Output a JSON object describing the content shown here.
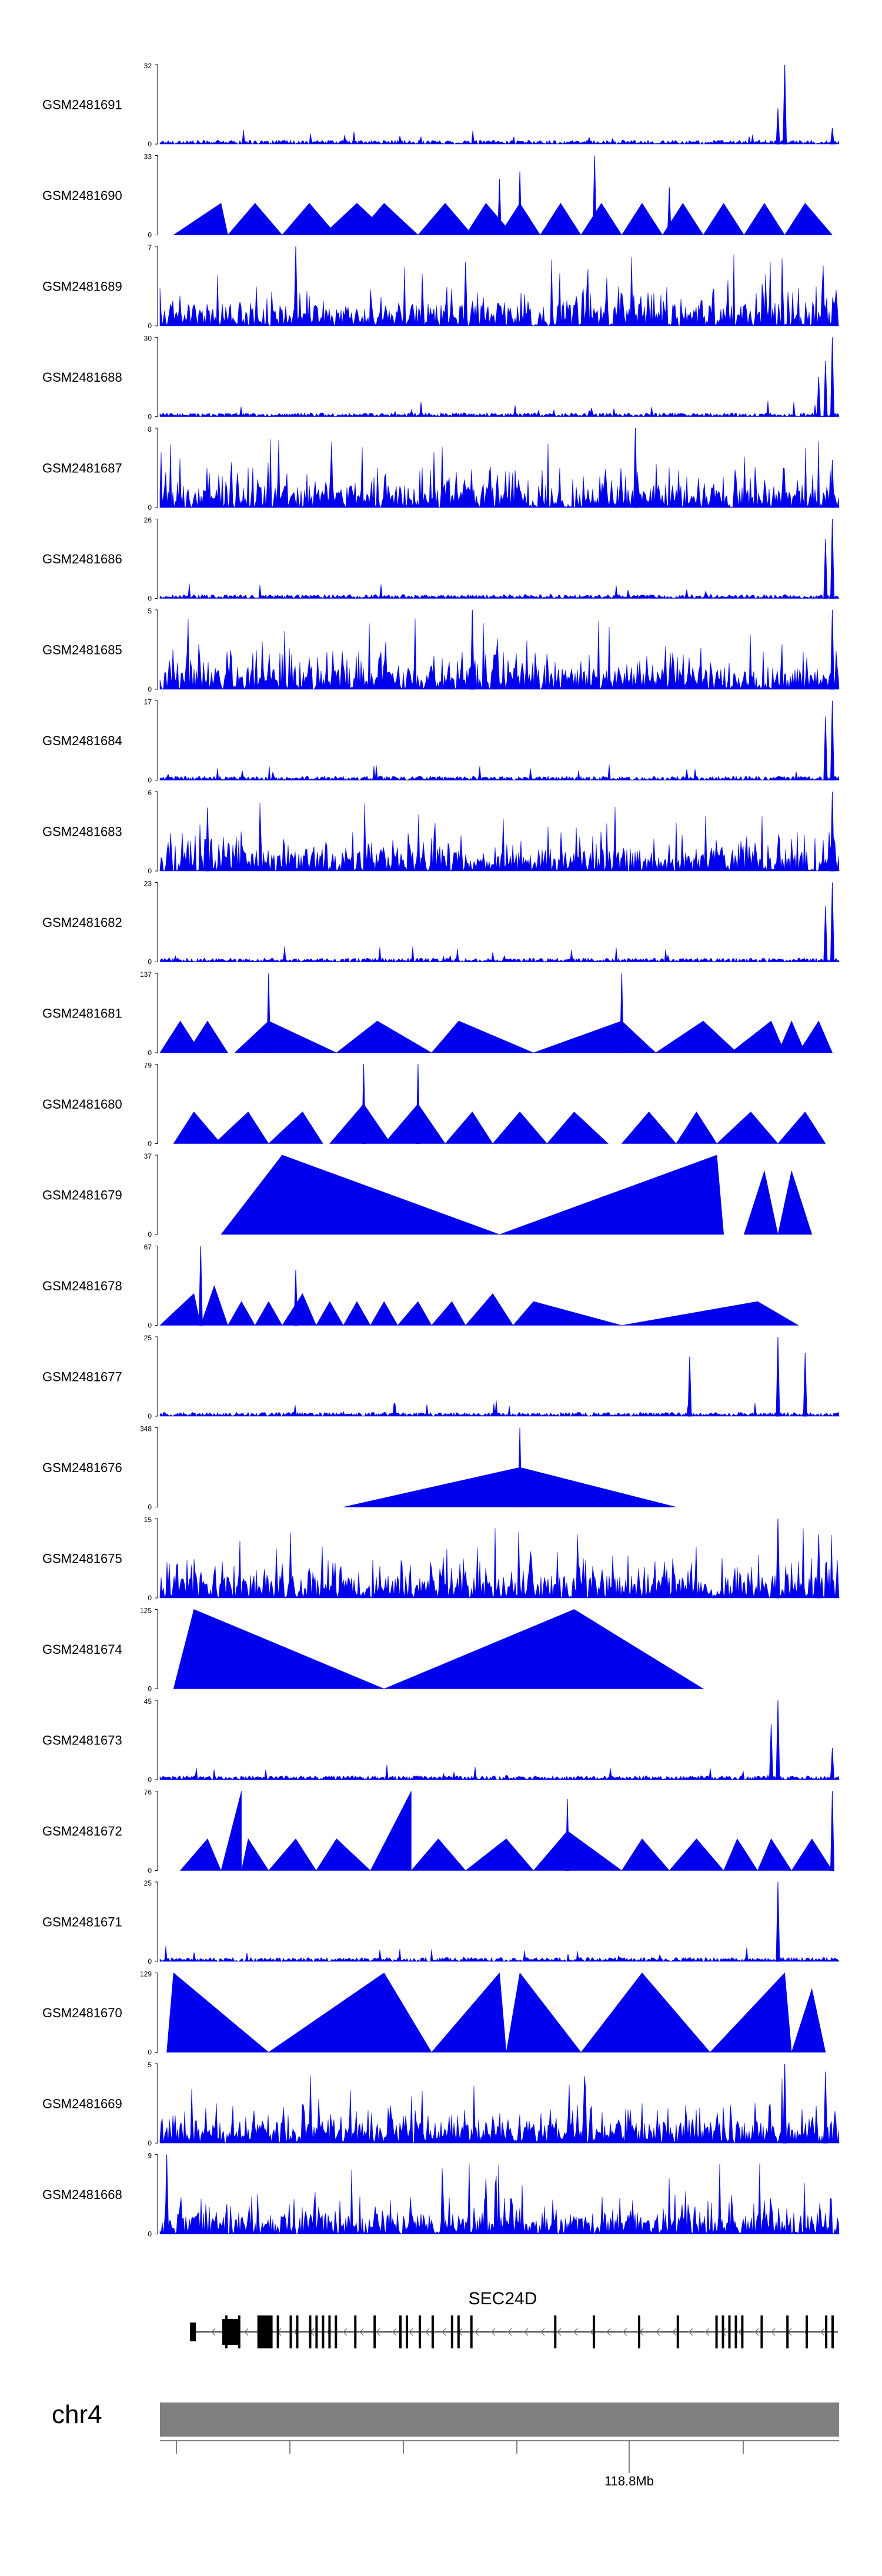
{
  "chart_data": {
    "type": "area",
    "genome": "chr4",
    "tick_label": "118.8Mb",
    "gene": {
      "name": "SEC24D",
      "strand": "minus"
    },
    "tracks": [
      {
        "name": "GSM2481691",
        "ymax": "32",
        "ymin": "0",
        "pattern": "noisy",
        "peaks": [
          [
            0.92,
            1.0
          ],
          [
            0.91,
            0.45
          ],
          [
            0.99,
            0.2
          ]
        ]
      },
      {
        "name": "GSM2481690",
        "ymax": "33",
        "ymin": "0",
        "pattern": "triangles",
        "peaks": [
          [
            0.64,
            1.0
          ],
          [
            0.5,
            0.7
          ],
          [
            0.53,
            0.8
          ],
          [
            0.75,
            0.6
          ]
        ]
      },
      {
        "name": "GSM2481689",
        "ymax": "7",
        "ymin": "0",
        "pattern": "dense",
        "peaks": [
          [
            0.2,
            1.0
          ],
          [
            0.45,
            0.8
          ]
        ]
      },
      {
        "name": "GSM2481688",
        "ymax": "30",
        "ymin": "0",
        "pattern": "noisy",
        "peaks": [
          [
            0.99,
            1.0
          ],
          [
            0.98,
            0.7
          ],
          [
            0.97,
            0.5
          ]
        ]
      },
      {
        "name": "GSM2481687",
        "ymax": "8",
        "ymin": "0",
        "pattern": "dense",
        "peaks": [
          [
            0.7,
            1.0
          ],
          [
            0.99,
            0.6
          ]
        ]
      },
      {
        "name": "GSM2481686",
        "ymax": "26",
        "ymin": "0",
        "pattern": "noisy",
        "peaks": [
          [
            0.99,
            1.0
          ],
          [
            0.98,
            0.75
          ]
        ]
      },
      {
        "name": "GSM2481685",
        "ymax": "5",
        "ymin": "0",
        "pattern": "dense",
        "peaks": [
          [
            0.46,
            1.0
          ],
          [
            0.99,
            1.0
          ]
        ]
      },
      {
        "name": "GSM2481684",
        "ymax": "17",
        "ymin": "0",
        "pattern": "noisy",
        "peaks": [
          [
            0.99,
            1.0
          ],
          [
            0.98,
            0.8
          ]
        ]
      },
      {
        "name": "GSM2481683",
        "ymax": "6",
        "ymin": "0",
        "pattern": "dense",
        "peaks": [
          [
            0.99,
            1.0
          ],
          [
            0.07,
            0.8
          ]
        ]
      },
      {
        "name": "GSM2481682",
        "ymax": "23",
        "ymin": "0",
        "pattern": "noisy",
        "peaks": [
          [
            0.99,
            1.0
          ],
          [
            0.98,
            0.7
          ]
        ]
      },
      {
        "name": "GSM2481681",
        "ymax": "137",
        "ymin": "0",
        "pattern": "triangles",
        "peaks": [
          [
            0.16,
            1.0
          ],
          [
            0.68,
            1.0
          ]
        ]
      },
      {
        "name": "GSM2481680",
        "ymax": "79",
        "ymin": "0",
        "pattern": "triangles",
        "peaks": [
          [
            0.3,
            1.0
          ],
          [
            0.38,
            1.0
          ]
        ]
      },
      {
        "name": "GSM2481679",
        "ymax": "37",
        "ymin": "0",
        "pattern": "triangles",
        "peaks": []
      },
      {
        "name": "GSM2481678",
        "ymax": "67",
        "ymin": "0",
        "pattern": "triangles",
        "peaks": [
          [
            0.06,
            1.0
          ],
          [
            0.2,
            0.7
          ]
        ]
      },
      {
        "name": "GSM2481677",
        "ymax": "25",
        "ymin": "0",
        "pattern": "noisy",
        "peaks": [
          [
            0.91,
            1.0
          ],
          [
            0.78,
            0.75
          ],
          [
            0.95,
            0.8
          ]
        ]
      },
      {
        "name": "GSM2481676",
        "ymax": "348",
        "ymin": "0",
        "pattern": "triangles",
        "peaks": [
          [
            0.53,
            1.0
          ]
        ]
      },
      {
        "name": "GSM2481675",
        "ymax": "15",
        "ymin": "0",
        "pattern": "dense",
        "peaks": [
          [
            0.91,
            1.0
          ],
          [
            0.97,
            0.8
          ]
        ]
      },
      {
        "name": "GSM2481674",
        "ymax": "125",
        "ymin": "0",
        "pattern": "triangles",
        "peaks": []
      },
      {
        "name": "GSM2481673",
        "ymax": "45",
        "ymin": "0",
        "pattern": "noisy",
        "peaks": [
          [
            0.91,
            1.0
          ],
          [
            0.9,
            0.7
          ],
          [
            0.99,
            0.4
          ]
        ]
      },
      {
        "name": "GSM2481672",
        "ymax": "76",
        "ymin": "0",
        "pattern": "triangles",
        "peaks": [
          [
            0.99,
            1.0
          ],
          [
            0.6,
            0.9
          ]
        ]
      },
      {
        "name": "GSM2481671",
        "ymax": "25",
        "ymin": "0",
        "pattern": "noisy",
        "peaks": [
          [
            0.91,
            1.0
          ]
        ]
      },
      {
        "name": "GSM2481670",
        "ymax": "129",
        "ymin": "0",
        "pattern": "triangles",
        "peaks": []
      },
      {
        "name": "GSM2481669",
        "ymax": "5",
        "ymin": "0",
        "pattern": "dense",
        "peaks": [
          [
            0.92,
            1.0
          ],
          [
            0.98,
            0.9
          ]
        ]
      },
      {
        "name": "GSM2481668",
        "ymax": "9",
        "ymin": "0",
        "pattern": "dense",
        "peaks": [
          [
            0.01,
            1.0
          ],
          [
            0.48,
            0.7
          ]
        ]
      }
    ],
    "triangle_sets": {
      "GSM2481690": [
        [
          2,
          10,
          9,
          0.4
        ],
        [
          10,
          18,
          14,
          0.4
        ],
        [
          18,
          26,
          22,
          0.4
        ],
        [
          24,
          34,
          29,
          0.4
        ],
        [
          29,
          38,
          33,
          0.4
        ],
        [
          38,
          46,
          42,
          0.4
        ],
        [
          45,
          52,
          48,
          0.4
        ],
        [
          50,
          56,
          53,
          0.4
        ],
        [
          56,
          62,
          59,
          0.4
        ],
        [
          62,
          68,
          65,
          0.4
        ],
        [
          68,
          74,
          71,
          0.4
        ],
        [
          74,
          80,
          77,
          0.4
        ],
        [
          80,
          86,
          83,
          0.4
        ],
        [
          86,
          92,
          89,
          0.4
        ],
        [
          92,
          99,
          95,
          0.4
        ]
      ],
      "GSM2481681": [
        [
          0,
          6,
          3,
          0.4
        ],
        [
          4,
          10,
          7,
          0.4
        ],
        [
          11,
          26,
          16,
          0.4
        ],
        [
          26,
          40,
          32,
          0.4
        ],
        [
          40,
          55,
          44,
          0.4
        ],
        [
          55,
          73,
          68,
          0.4
        ],
        [
          73,
          85,
          80,
          0.4
        ],
        [
          84,
          92,
          90,
          0.4
        ],
        [
          91,
          95,
          93,
          0.4
        ],
        [
          94,
          99,
          97,
          0.4
        ]
      ],
      "GSM2481680": [
        [
          2,
          9,
          5,
          0.4
        ],
        [
          8,
          16,
          13,
          0.4
        ],
        [
          16,
          24,
          21,
          0.4
        ],
        [
          25,
          34,
          30,
          0.5
        ],
        [
          33,
          42,
          38,
          0.5
        ],
        [
          42,
          49,
          46,
          0.4
        ],
        [
          49,
          57,
          53,
          0.4
        ],
        [
          57,
          66,
          61,
          0.4
        ],
        [
          68,
          76,
          72,
          0.4
        ],
        [
          76,
          82,
          79,
          0.4
        ],
        [
          82,
          91,
          87,
          0.4
        ],
        [
          91,
          98,
          95,
          0.4
        ]
      ],
      "GSM2481679": [
        [
          9,
          50,
          18,
          1.0
        ],
        [
          50,
          83,
          82,
          1.0
        ],
        [
          86,
          91,
          89,
          0.8
        ],
        [
          91,
          96,
          93,
          0.8
        ]
      ],
      "GSM2481678": [
        [
          0,
          6,
          5,
          0.4
        ],
        [
          6,
          10,
          8,
          0.5
        ],
        [
          10,
          14,
          12,
          0.3
        ],
        [
          14,
          18,
          16,
          0.3
        ],
        [
          18,
          23,
          21,
          0.4
        ],
        [
          23,
          27,
          25,
          0.3
        ],
        [
          27,
          31,
          29,
          0.3
        ],
        [
          31,
          35,
          33,
          0.3
        ],
        [
          35,
          40,
          38,
          0.3
        ],
        [
          40,
          45,
          43,
          0.3
        ],
        [
          45,
          52,
          49,
          0.4
        ],
        [
          52,
          68,
          55,
          0.3
        ],
        [
          68,
          94,
          88,
          0.3
        ]
      ],
      "GSM2481676": [
        [
          27,
          76,
          53,
          0.5
        ]
      ],
      "GSM2481674": [
        [
          2,
          33,
          5,
          1.0
        ],
        [
          33,
          80,
          61,
          1.0
        ]
      ],
      "GSM2481672": [
        [
          3,
          9,
          7,
          0.4
        ],
        [
          9,
          12,
          12,
          1.0
        ],
        [
          12,
          16,
          13,
          0.4
        ],
        [
          16,
          23,
          20,
          0.4
        ],
        [
          23,
          31,
          26,
          0.4
        ],
        [
          31,
          37,
          37,
          1.0
        ],
        [
          37,
          45,
          41,
          0.4
        ],
        [
          45,
          55,
          51,
          0.4
        ],
        [
          55,
          68,
          60,
          0.5
        ],
        [
          68,
          75,
          71,
          0.4
        ],
        [
          75,
          83,
          79,
          0.4
        ],
        [
          83,
          88,
          85,
          0.4
        ],
        [
          88,
          93,
          90,
          0.4
        ],
        [
          93,
          99,
          96,
          0.4
        ]
      ],
      "GSM2481670": [
        [
          1,
          16,
          2,
          1.0
        ],
        [
          16,
          40,
          33,
          1.0
        ],
        [
          40,
          51,
          50,
          1.0
        ],
        [
          51,
          62,
          53,
          1.0
        ],
        [
          62,
          81,
          71,
          1.0
        ],
        [
          81,
          93,
          92,
          1.0
        ],
        [
          93,
          98,
          96,
          0.8
        ]
      ]
    },
    "gene_exons": [
      0.05,
      0.07,
      0.1,
      0.11,
      0.12,
      0.13,
      0.15,
      0.16,
      0.18,
      0.19,
      0.2,
      0.21,
      0.22,
      0.25,
      0.28,
      0.32,
      0.33,
      0.35,
      0.37,
      0.4,
      0.41,
      0.43,
      0.56,
      0.62,
      0.69,
      0.75,
      0.81,
      0.82,
      0.83,
      0.84,
      0.85,
      0.88,
      0.92,
      0.95,
      0.98,
      0.99
    ]
  }
}
